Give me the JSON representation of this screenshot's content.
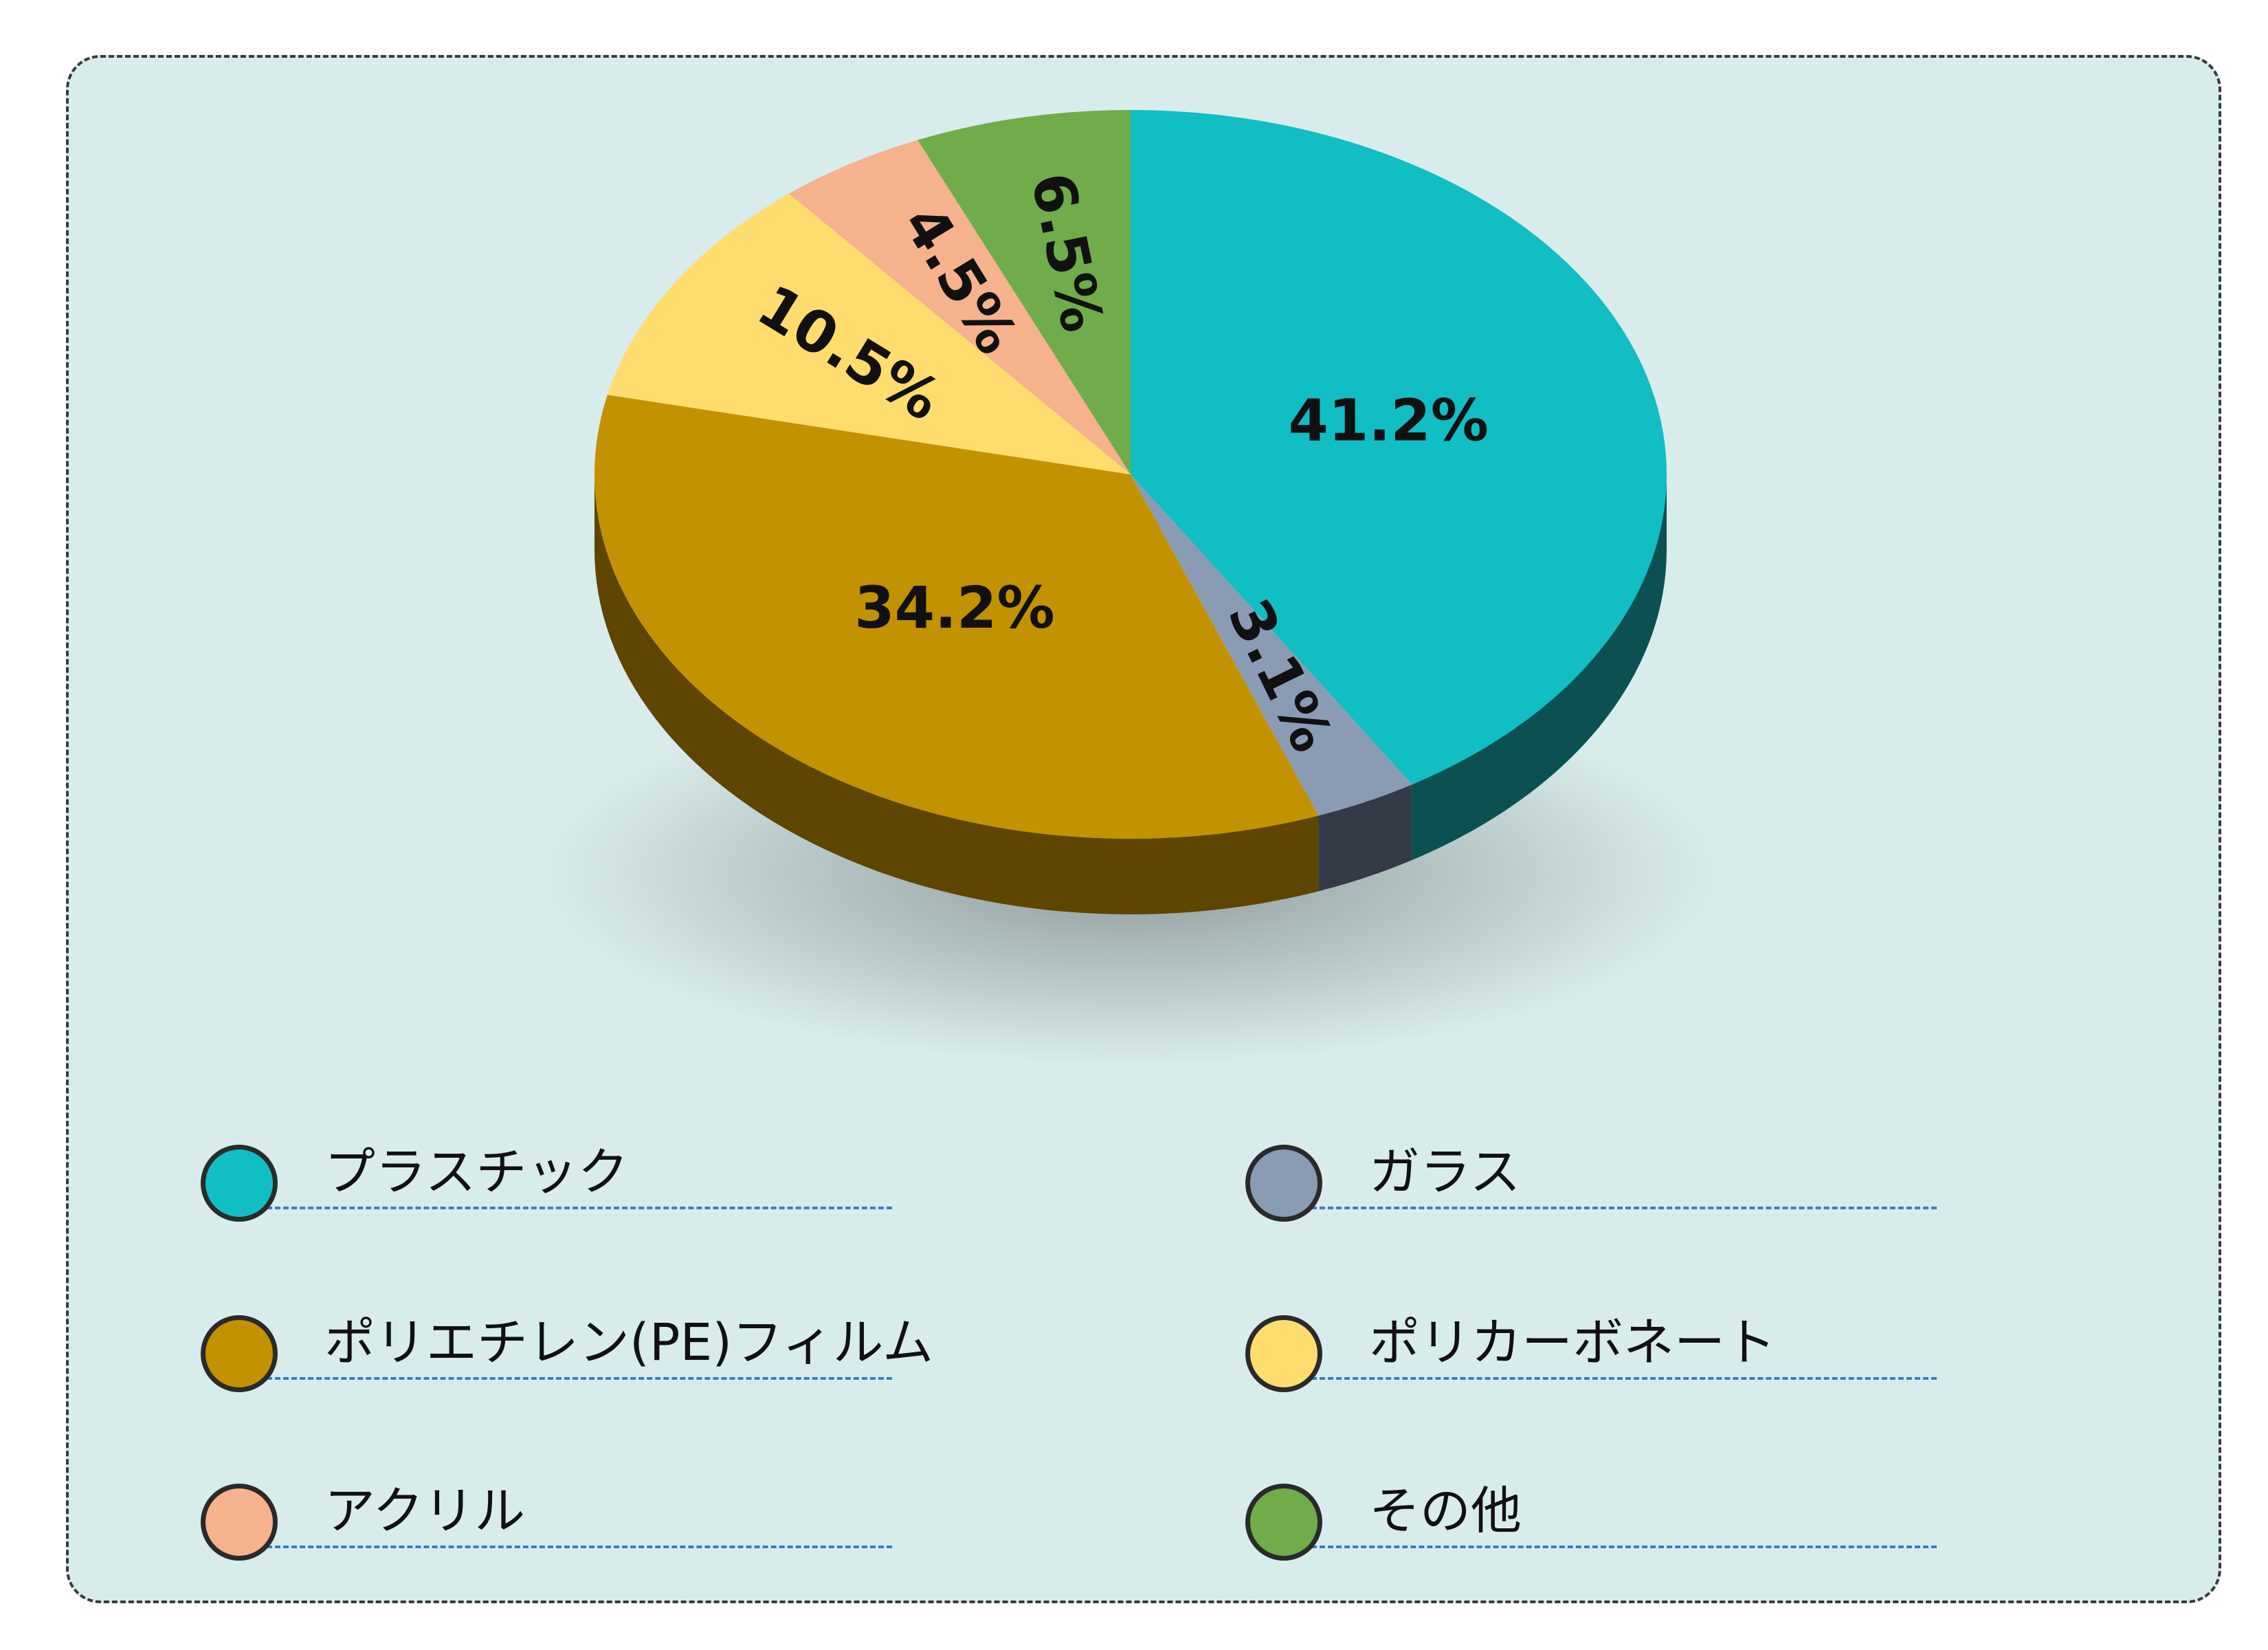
{
  "chart_data": {
    "type": "pie",
    "title": "",
    "style": "3d",
    "slices": [
      {
        "label": "プラスチック",
        "value": 41.2,
        "display": "41.2%",
        "color": "#10bec4",
        "side_color": "#0b5152"
      },
      {
        "label": "ガラス",
        "value": 3.1,
        "display": "3.1%",
        "color": "#8a9cb4",
        "side_color": "#343b47"
      },
      {
        "label": "ポリエチレン(PE)フィルム",
        "value": 34.2,
        "display": "34.2%",
        "color": "#c39200",
        "side_color": "#5e4500"
      },
      {
        "label": "ポリカーボネート",
        "value": 10.5,
        "display": "10.5%",
        "color": "#fedd6e",
        "side_color": "#8f7a30"
      },
      {
        "label": "アクリル",
        "value": 4.5,
        "display": "4.5%",
        "color": "#f5b28c",
        "side_color": "#8a5e45"
      },
      {
        "label": "その他",
        "value": 6.5,
        "display": "6.5%",
        "color": "#70ac4a",
        "side_color": "#345522"
      }
    ],
    "legend": {
      "placement": "bottom",
      "columns": 2,
      "order": [
        "プラスチック",
        "ガラス",
        "ポリエチレン(PE)フィルム",
        "ポリカーボネート",
        "アクリル",
        "その他"
      ]
    }
  },
  "panel_color": "#d9ecec"
}
